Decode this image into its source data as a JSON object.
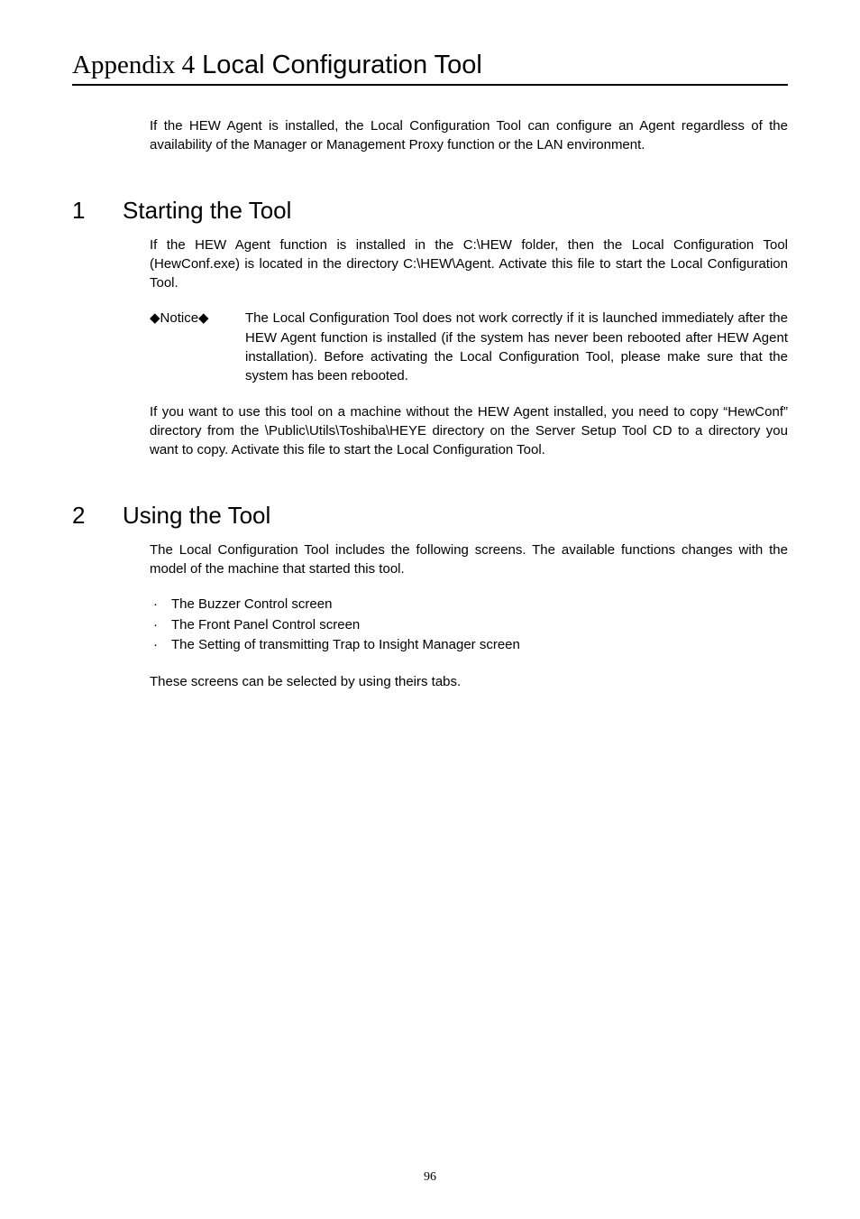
{
  "title": {
    "appendix": "Appendix 4",
    "main": " Local Configuration Tool"
  },
  "intro": "If the HEW Agent is installed, the Local Configuration Tool can configure an Agent regardless of the availability of the Manager or Management Proxy function or the LAN environment.",
  "section1": {
    "num": "1",
    "title": "Starting the Tool",
    "p1": "If the HEW Agent function is installed in the C:\\HEW folder, then the Local Configuration Tool (HewConf.exe) is located in the directory C:\\HEW\\Agent. Activate this file to start the Local Configuration Tool.",
    "notice_label": "◆Notice◆",
    "notice_text": "The Local Configuration Tool does not work correctly if it is launched immediately after the HEW Agent function is installed (if the system has never been rebooted after HEW Agent installation). Before activating the Local Configuration Tool, please make sure that the system has been rebooted.",
    "p2": "If you want to use this tool on a machine without the HEW Agent installed, you need to copy “HewConf” directory from the \\Public\\Utils\\Toshiba\\HEYE directory on the Server Setup Tool CD to a directory you want to copy. Activate this file to start the Local Configuration Tool."
  },
  "section2": {
    "num": "2",
    "title": "Using the Tool",
    "p1": "The Local Configuration Tool includes the following screens. The available functions changes with the model of the machine that started this tool.",
    "bullets": [
      "The Buzzer Control screen",
      "The Front Panel Control screen",
      "The Setting of transmitting Trap to Insight Manager screen"
    ],
    "p2": "These screens can be selected by using theirs tabs."
  },
  "page_number": "96"
}
